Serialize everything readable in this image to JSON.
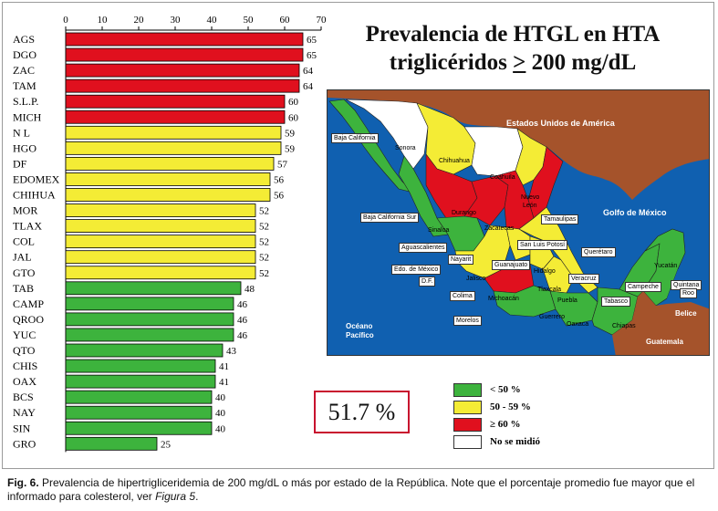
{
  "chart_data": {
    "type": "bar",
    "orientation": "horizontal",
    "xlim": [
      0,
      70
    ],
    "xticks": [
      0,
      10,
      20,
      30,
      40,
      50,
      60,
      70
    ],
    "categories": [
      "AGS",
      "DGO",
      "ZAC",
      "TAM",
      "S.L.P.",
      "MICH",
      "N L",
      "HGO",
      "DF",
      "EDOMEX",
      "CHIHUA",
      "MOR",
      "TLAX",
      "COL",
      "JAL",
      "GTO",
      "TAB",
      "CAMP",
      "QROO",
      "YUC",
      "QTO",
      "CHIS",
      "OAX",
      "BCS",
      "NAY",
      "SIN",
      "GRO"
    ],
    "values": [
      65,
      65,
      64,
      64,
      60,
      60,
      59,
      59,
      57,
      56,
      56,
      52,
      52,
      52,
      52,
      52,
      48,
      46,
      46,
      46,
      43,
      41,
      41,
      40,
      40,
      40,
      25
    ],
    "bar_colors": {
      "high": "#e0101e",
      "mid": "#f4ec35",
      "low": "#3db33d",
      "none": "#ffffff"
    },
    "title_line1": "Prevalencia de HTGL en HTA",
    "title_line2_pre": "triglicéridos ",
    "title_line2_u": ">",
    "title_line2_post": " 200 mg/dL",
    "average_label": "51.7 %",
    "legend": [
      {
        "label": "<  50 %",
        "color": "#3db33d"
      },
      {
        "label": "50 - 59 %",
        "color": "#f4ec35"
      },
      {
        "label": "≥ 60 %",
        "color": "#e0101e"
      },
      {
        "label": "No se midió",
        "color": "#ffffff"
      }
    ]
  },
  "map": {
    "colors": {
      "usa": "#a5532b",
      "ocean": "#1060b0",
      "guatemala": "#a5532b",
      "belize": "#1060b0"
    },
    "labels": {
      "usa": "Estados Unidos de América",
      "golfo": "Golfo de México",
      "oceano_1": "Océano",
      "oceano_2": "Pacífico",
      "belice": "Belice",
      "guatemala": "Guatemala",
      "baja_california": "Baja California",
      "sonora": "Sonora",
      "chihuahua": "Chihuahua",
      "coahuila": "Coahuila",
      "nuevo_leon_1": "Nuevo",
      "nuevo_leon_2": "León",
      "baja_california_sur": "Baja California Sur",
      "sinaloa": "Sinaloa",
      "durango": "Durango",
      "tamaulipas": "Tamaulipas",
      "zacatecas": "Zacatecas",
      "aguascalientes": "Aguascalientes",
      "san_luis_potosi": "San Luis Potosí",
      "queretaro": "Querétaro",
      "nayarit": "Nayarit",
      "guanajuato": "Guanajuato",
      "edo_mexico": "Edo. de México",
      "hidalgo": "Hidalgo",
      "veracruz": "Veracruz",
      "df": "D.F.",
      "jalisco": "Jalisco",
      "tlaxcala": "Tlaxcala",
      "colima": "Colima",
      "michoacan": "Michoacán",
      "puebla": "Puebla",
      "morelos": "Morelos",
      "guerrero": "Guerrero",
      "oaxaca": "Oaxaca",
      "chiapas": "Chiapas",
      "tabasco": "Tabasco",
      "campeche": "Campeche",
      "yucatan": "Yucatán",
      "quintana_roo_1": "Quintana",
      "quintana_roo_2": "Roo"
    }
  },
  "caption": {
    "fig": "Fig. 6.",
    "text": " Prevalencia de hipertrigliceridemia de 200 mg/dL o más por estado de la República. Note que el porcentaje promedio fue mayor que el informado para colesterol, ver ",
    "ref": "Figura 5",
    "end": "."
  }
}
